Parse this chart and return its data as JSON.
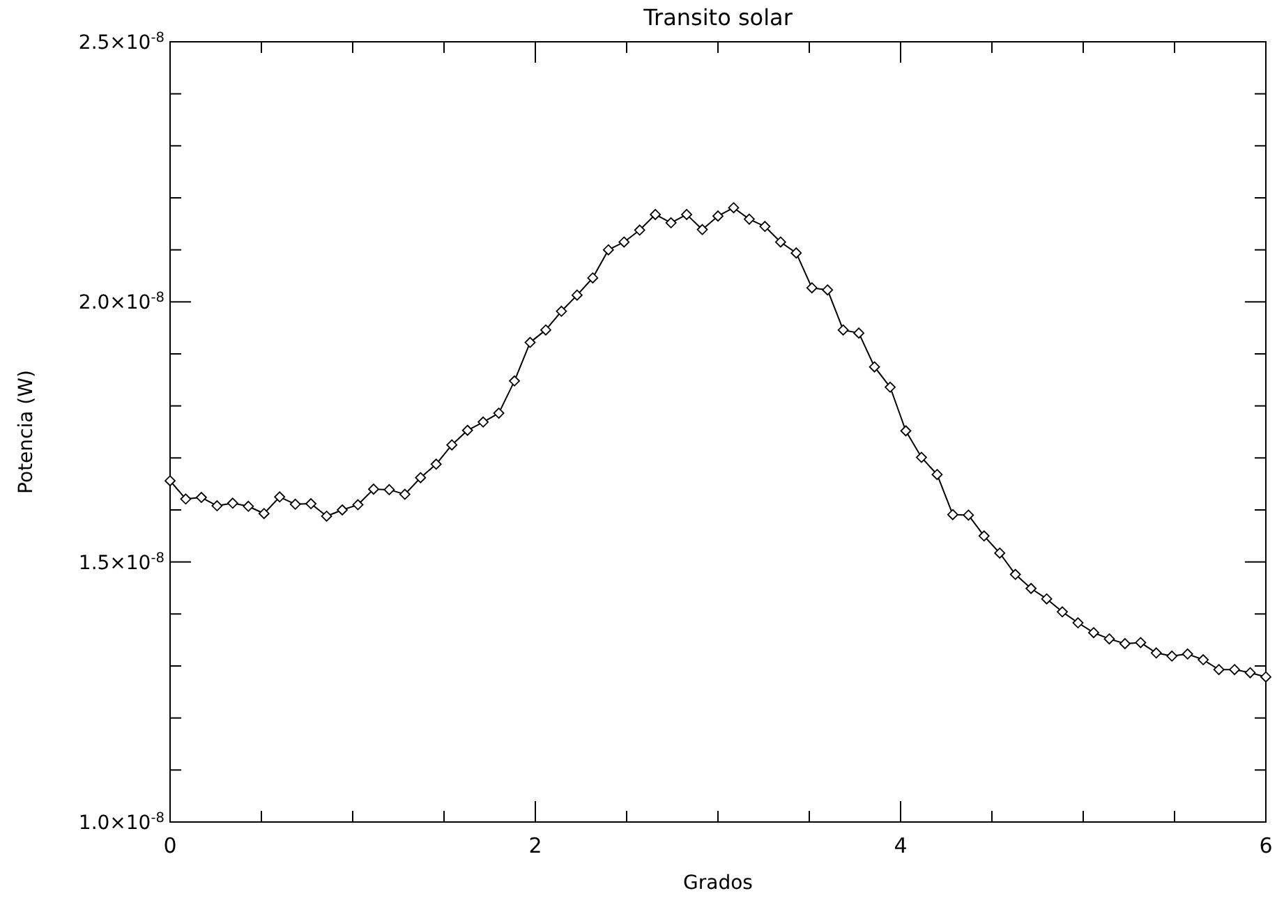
{
  "chart_data": {
    "type": "line",
    "title": "Transito solar",
    "xlabel": "Grados",
    "ylabel": "Potencia (W)",
    "x": [
      0,
      0.0857,
      0.1714,
      0.2571,
      0.3429,
      0.4286,
      0.5143,
      0.6,
      0.6857,
      0.7714,
      0.8571,
      0.9429,
      1.0286,
      1.1143,
      1.2,
      1.2857,
      1.3714,
      1.4571,
      1.5429,
      1.6286,
      1.7143,
      1.8,
      1.8857,
      1.9714,
      2.0571,
      2.1429,
      2.2286,
      2.3143,
      2.4,
      2.4857,
      2.5714,
      2.6571,
      2.7429,
      2.8286,
      2.9143,
      3,
      3.0857,
      3.1714,
      3.2571,
      3.3429,
      3.4286,
      3.5143,
      3.6,
      3.6857,
      3.7714,
      3.8571,
      3.9429,
      4.0286,
      4.1143,
      4.2,
      4.2857,
      4.3714,
      4.4571,
      4.5429,
      4.6286,
      4.7143,
      4.8,
      4.8857,
      4.9714,
      5.0571,
      5.1429,
      5.2286,
      5.3143,
      5.4,
      5.4857,
      5.5714,
      5.6571,
      5.7429,
      5.8286,
      5.9143,
      6
    ],
    "series": [
      {
        "color": "#000000",
        "values": [
          1.656e-08,
          1.621e-08,
          1.624e-08,
          1.608e-08,
          1.613e-08,
          1.607e-08,
          1.593e-08,
          1.625e-08,
          1.611e-08,
          1.612e-08,
          1.588e-08,
          1.6e-08,
          1.61e-08,
          1.64e-08,
          1.639e-08,
          1.63e-08,
          1.662e-08,
          1.688e-08,
          1.725e-08,
          1.753e-08,
          1.769e-08,
          1.786e-08,
          1.848e-08,
          1.922e-08,
          1.946e-08,
          1.982e-08,
          2.013e-08,
          2.046e-08,
          2.1e-08,
          2.115e-08,
          2.138e-08,
          2.168e-08,
          2.152e-08,
          2.168e-08,
          2.139e-08,
          2.165e-08,
          2.181e-08,
          2.159e-08,
          2.145e-08,
          2.115e-08,
          2.094e-08,
          2.027e-08,
          2.023e-08,
          1.946e-08,
          1.94e-08,
          1.875e-08,
          1.836e-08,
          1.752e-08,
          1.701e-08,
          1.668e-08,
          1.591e-08,
          1.59e-08,
          1.55e-08,
          1.517e-08,
          1.476e-08,
          1.449e-08,
          1.429e-08,
          1.404e-08,
          1.383e-08,
          1.364e-08,
          1.352e-08,
          1.343e-08,
          1.345e-08,
          1.325e-08,
          1.319e-08,
          1.323e-08,
          1.312e-08,
          1.293e-08,
          1.293e-08,
          1.287e-08,
          1.279e-08
        ]
      }
    ],
    "xlim": [
      0,
      6
    ],
    "xticks": [
      0,
      {
        "value": 0.5,
        "label": null
      },
      {
        "value": 1,
        "label": null
      },
      {
        "value": 1.5,
        "label": null
      },
      2,
      {
        "value": 2.5,
        "label": null
      },
      {
        "value": 3,
        "label": null
      },
      {
        "value": 3.5,
        "label": null
      },
      4,
      {
        "value": 4.5,
        "label": null
      },
      {
        "value": 5,
        "label": null
      },
      {
        "value": 5.5,
        "label": null
      },
      6
    ],
    "ylim": [
      1e-08,
      2.5e-08
    ],
    "yticks": [
      {
        "value": 1e-08,
        "label": "1.0×10$^{-8}$"
      },
      {
        "value": 1.1e-08,
        "label": null
      },
      {
        "value": 1.2e-08,
        "label": null
      },
      {
        "value": 1.3e-08,
        "label": null
      },
      {
        "value": 1.4e-08,
        "label": null
      },
      {
        "value": 1.5e-08,
        "label": "1.5×10$^{-8}$"
      },
      {
        "value": 1.6e-08,
        "label": null
      },
      {
        "value": 1.7e-08,
        "label": null
      },
      {
        "value": 1.8e-08,
        "label": null
      },
      {
        "value": 1.9e-08,
        "label": null
      },
      {
        "value": 2e-08,
        "label": "2.0×10$^{-8}$"
      },
      {
        "value": 2.1e-08,
        "label": null
      },
      {
        "value": 2.2e-08,
        "label": null
      },
      {
        "value": 2.3e-08,
        "label": null
      },
      {
        "value": 2.4e-08,
        "label": null
      },
      {
        "value": 2.5e-08,
        "label": "2.5×10$^{-8}$"
      }
    ],
    "marker": "diamond",
    "line_style": "solid"
  }
}
